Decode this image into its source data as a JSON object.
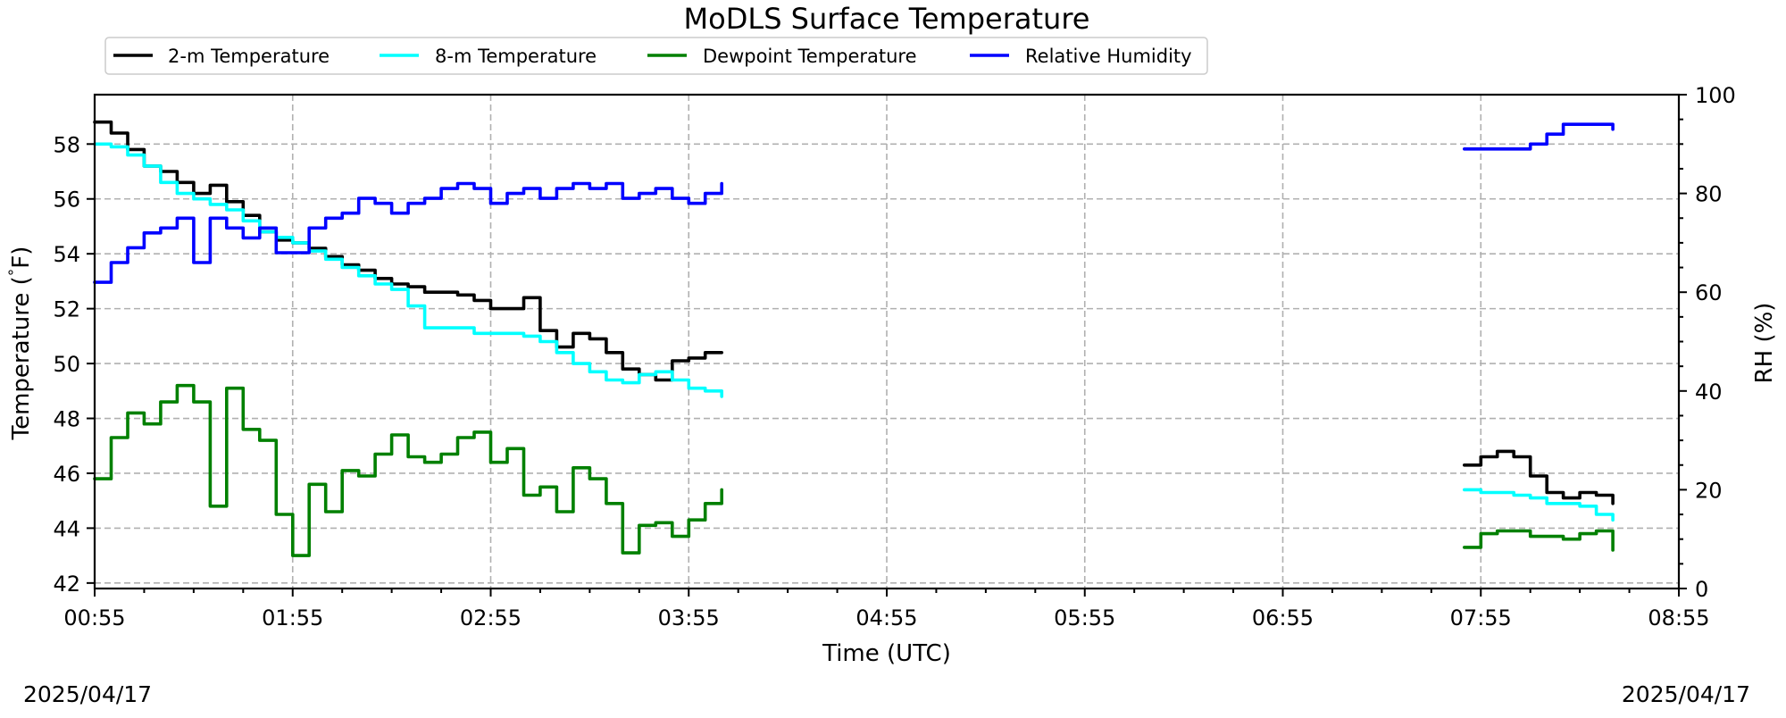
{
  "chart_data": {
    "type": "line",
    "title": "MoDLS Surface Temperature",
    "xlabel": "Time (UTC)",
    "ylabel_left": "Temperature ($^\\circ$F)",
    "ylabel_left_parts": [
      "Temperature (",
      "°",
      "F)"
    ],
    "ylabel_right": "RH (%)",
    "date_left": "2025/04/17",
    "date_right": "2025/04/17",
    "x_ticks": [
      "00:55",
      "01:55",
      "02:55",
      "03:55",
      "04:55",
      "05:55",
      "06:55",
      "07:55",
      "08:55"
    ],
    "x_tick_minutes": [
      55,
      115,
      175,
      235,
      295,
      355,
      415,
      475,
      535
    ],
    "xlim_minutes": [
      55,
      535
    ],
    "y_left_ticks": [
      42,
      44,
      46,
      48,
      50,
      52,
      54,
      56,
      58
    ],
    "y_left_ticklabels": [
      "42",
      "44",
      "46",
      "48",
      "50",
      "52",
      "54",
      "56",
      "58"
    ],
    "ylim_left": [
      41.8,
      59.8
    ],
    "y_right_ticks": [
      0,
      20,
      40,
      60,
      80,
      100
    ],
    "y_right_ticklabels": [
      "0",
      "20",
      "40",
      "60",
      "80",
      "100"
    ],
    "ylim_right": [
      0,
      100
    ],
    "grid": true,
    "legend_position": "top-left",
    "legend": [
      {
        "name": "2-m Temperature",
        "color": "#000000"
      },
      {
        "name": "8-m Temperature",
        "color": "#00ffff"
      },
      {
        "name": "Dewpoint Temperature",
        "color": "#008000"
      },
      {
        "name": "Relative Humidity",
        "color": "#0000ff"
      }
    ],
    "series": [
      {
        "name": "2-m Temperature",
        "axis": "left",
        "color": "#000000",
        "segments": [
          {
            "x": [
              "00:55",
              "01:00",
              "01:05",
              "01:10",
              "01:15",
              "01:20",
              "01:25",
              "01:30",
              "01:35",
              "01:40",
              "01:45",
              "01:50",
              "01:55",
              "02:00",
              "02:05",
              "02:10",
              "02:15",
              "02:20",
              "02:25",
              "02:30",
              "02:35",
              "02:40",
              "02:45",
              "02:50",
              "02:55",
              "03:00",
              "03:05",
              "03:10",
              "03:15",
              "03:20",
              "03:25",
              "03:30",
              "03:35",
              "03:40",
              "03:45",
              "03:50",
              "03:55",
              "04:00",
              "04:05"
            ],
            "y": [
              58.8,
              58.4,
              57.8,
              57.2,
              57.0,
              56.6,
              56.2,
              56.5,
              55.9,
              55.4,
              54.8,
              54.5,
              54.4,
              54.2,
              53.9,
              53.6,
              53.4,
              53.1,
              52.9,
              52.8,
              52.6,
              52.6,
              52.5,
              52.3,
              52.0,
              52.0,
              52.4,
              51.2,
              50.6,
              51.1,
              50.9,
              50.4,
              49.8,
              49.6,
              49.4,
              50.1,
              50.2,
              50.4,
              50.4
            ]
          },
          {
            "x": [
              "07:50",
              "07:55",
              "08:00",
              "08:05",
              "08:10",
              "08:15",
              "08:20",
              "08:25",
              "08:30",
              "08:35"
            ],
            "y": [
              46.3,
              46.6,
              46.8,
              46.6,
              45.9,
              45.3,
              45.1,
              45.3,
              45.2,
              44.9
            ]
          }
        ]
      },
      {
        "name": "8-m Temperature",
        "axis": "left",
        "color": "#00ffff",
        "segments": [
          {
            "x": [
              "00:55",
              "01:00",
              "01:05",
              "01:10",
              "01:15",
              "01:20",
              "01:25",
              "01:30",
              "01:35",
              "01:40",
              "01:45",
              "01:50",
              "01:55",
              "02:00",
              "02:05",
              "02:10",
              "02:15",
              "02:20",
              "02:25",
              "02:30",
              "02:35",
              "02:40",
              "02:45",
              "02:50",
              "02:55",
              "03:00",
              "03:05",
              "03:10",
              "03:15",
              "03:20",
              "03:25",
              "03:30",
              "03:35",
              "03:40",
              "03:45",
              "03:50",
              "03:55",
              "04:00",
              "04:05"
            ],
            "y": [
              58.0,
              57.9,
              57.6,
              57.2,
              56.6,
              56.2,
              56.0,
              55.8,
              55.6,
              55.2,
              54.8,
              54.6,
              54.4,
              54.1,
              53.8,
              53.5,
              53.2,
              52.9,
              52.7,
              52.1,
              51.3,
              51.3,
              51.3,
              51.1,
              51.1,
              51.1,
              51.0,
              50.8,
              50.4,
              50.0,
              49.7,
              49.4,
              49.3,
              49.6,
              49.7,
              49.4,
              49.1,
              49.0,
              48.8
            ]
          },
          {
            "x": [
              "07:50",
              "07:55",
              "08:00",
              "08:05",
              "08:10",
              "08:15",
              "08:20",
              "08:25",
              "08:30",
              "08:35"
            ],
            "y": [
              45.4,
              45.3,
              45.3,
              45.2,
              45.1,
              44.9,
              44.9,
              44.8,
              44.5,
              44.3
            ]
          }
        ]
      },
      {
        "name": "Dewpoint Temperature",
        "axis": "left",
        "color": "#008000",
        "segments": [
          {
            "x": [
              "00:55",
              "01:00",
              "01:05",
              "01:10",
              "01:15",
              "01:20",
              "01:25",
              "01:30",
              "01:35",
              "01:40",
              "01:45",
              "01:50",
              "01:55",
              "02:00",
              "02:05",
              "02:10",
              "02:15",
              "02:20",
              "02:25",
              "02:30",
              "02:35",
              "02:40",
              "02:45",
              "02:50",
              "02:55",
              "03:00",
              "03:05",
              "03:10",
              "03:15",
              "03:20",
              "03:25",
              "03:30",
              "03:35",
              "03:40",
              "03:45",
              "03:50",
              "03:55",
              "04:00",
              "04:05"
            ],
            "y": [
              45.8,
              47.3,
              48.2,
              47.8,
              48.6,
              49.2,
              48.6,
              44.8,
              49.1,
              47.6,
              47.2,
              44.5,
              43.0,
              45.6,
              44.6,
              46.1,
              45.9,
              46.7,
              47.4,
              46.6,
              46.4,
              46.7,
              47.3,
              47.5,
              46.4,
              46.9,
              45.2,
              45.5,
              44.6,
              46.2,
              45.8,
              44.9,
              43.1,
              44.1,
              44.2,
              43.7,
              44.3,
              44.9,
              45.4
            ]
          },
          {
            "x": [
              "07:50",
              "07:55",
              "08:00",
              "08:05",
              "08:10",
              "08:15",
              "08:20",
              "08:25",
              "08:30",
              "08:35"
            ],
            "y": [
              43.3,
              43.8,
              43.9,
              43.9,
              43.7,
              43.7,
              43.6,
              43.8,
              43.9,
              43.2
            ]
          }
        ]
      },
      {
        "name": "Relative Humidity",
        "axis": "right",
        "color": "#0000ff",
        "segments": [
          {
            "x": [
              "00:55",
              "01:00",
              "01:05",
              "01:10",
              "01:15",
              "01:20",
              "01:25",
              "01:30",
              "01:35",
              "01:40",
              "01:45",
              "01:50",
              "01:55",
              "02:00",
              "02:05",
              "02:10",
              "02:15",
              "02:20",
              "02:25",
              "02:30",
              "02:35",
              "02:40",
              "02:45",
              "02:50",
              "02:55",
              "03:00",
              "03:05",
              "03:10",
              "03:15",
              "03:20",
              "03:25",
              "03:30",
              "03:35",
              "03:40",
              "03:45",
              "03:50",
              "03:55",
              "04:00",
              "04:05"
            ],
            "y": [
              62,
              66,
              69,
              72,
              73,
              75,
              66,
              75,
              73,
              71,
              73,
              68,
              68,
              73,
              75,
              76,
              79,
              78,
              76,
              78,
              79,
              81,
              82,
              81,
              78,
              80,
              81,
              79,
              81,
              82,
              81,
              82,
              79,
              80,
              81,
              79,
              78,
              80,
              82
            ]
          },
          {
            "x": [
              "07:50",
              "07:55",
              "08:00",
              "08:05",
              "08:10",
              "08:15",
              "08:20",
              "08:25",
              "08:30",
              "08:35"
            ],
            "y": [
              89,
              89,
              89,
              89,
              90,
              92,
              94,
              94,
              94,
              93
            ]
          }
        ]
      }
    ]
  }
}
